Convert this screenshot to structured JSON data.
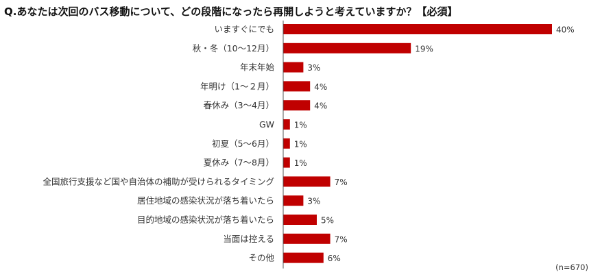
{
  "question": "Q.あなたは次回のバス移動について、どの段階になったら再開しようと考えていますか？【必須】",
  "note": "(n=670)",
  "colors": {
    "bar": "#c00000",
    "axis": "#555555"
  },
  "chart_data": {
    "type": "bar",
    "orientation": "horizontal",
    "categories": [
      "いますぐにでも",
      "秋・冬（10～12月）",
      "年末年始",
      "年明け（1～２月）",
      "春休み（3～4月）",
      "GW",
      "初夏（5～6月）",
      "夏休み（7～8月）",
      "全国旅行支援など国や自治体の補助が受けられるタイミング",
      "居住地域の感染状況が落ち着いたら",
      "目的地域の感染状況が落ち着いたら",
      "当面は控える",
      "その他"
    ],
    "values": [
      40,
      19,
      3,
      4,
      4,
      1,
      1,
      1,
      7,
      3,
      5,
      7,
      6
    ],
    "value_labels": [
      "40%",
      "19%",
      "3%",
      "4%",
      "4%",
      "1%",
      "1%",
      "1%",
      "7%",
      "3%",
      "5%",
      "7%",
      "6%"
    ],
    "unit": "%",
    "xlim": [
      0,
      40
    ],
    "grid": false,
    "legend": "none"
  }
}
